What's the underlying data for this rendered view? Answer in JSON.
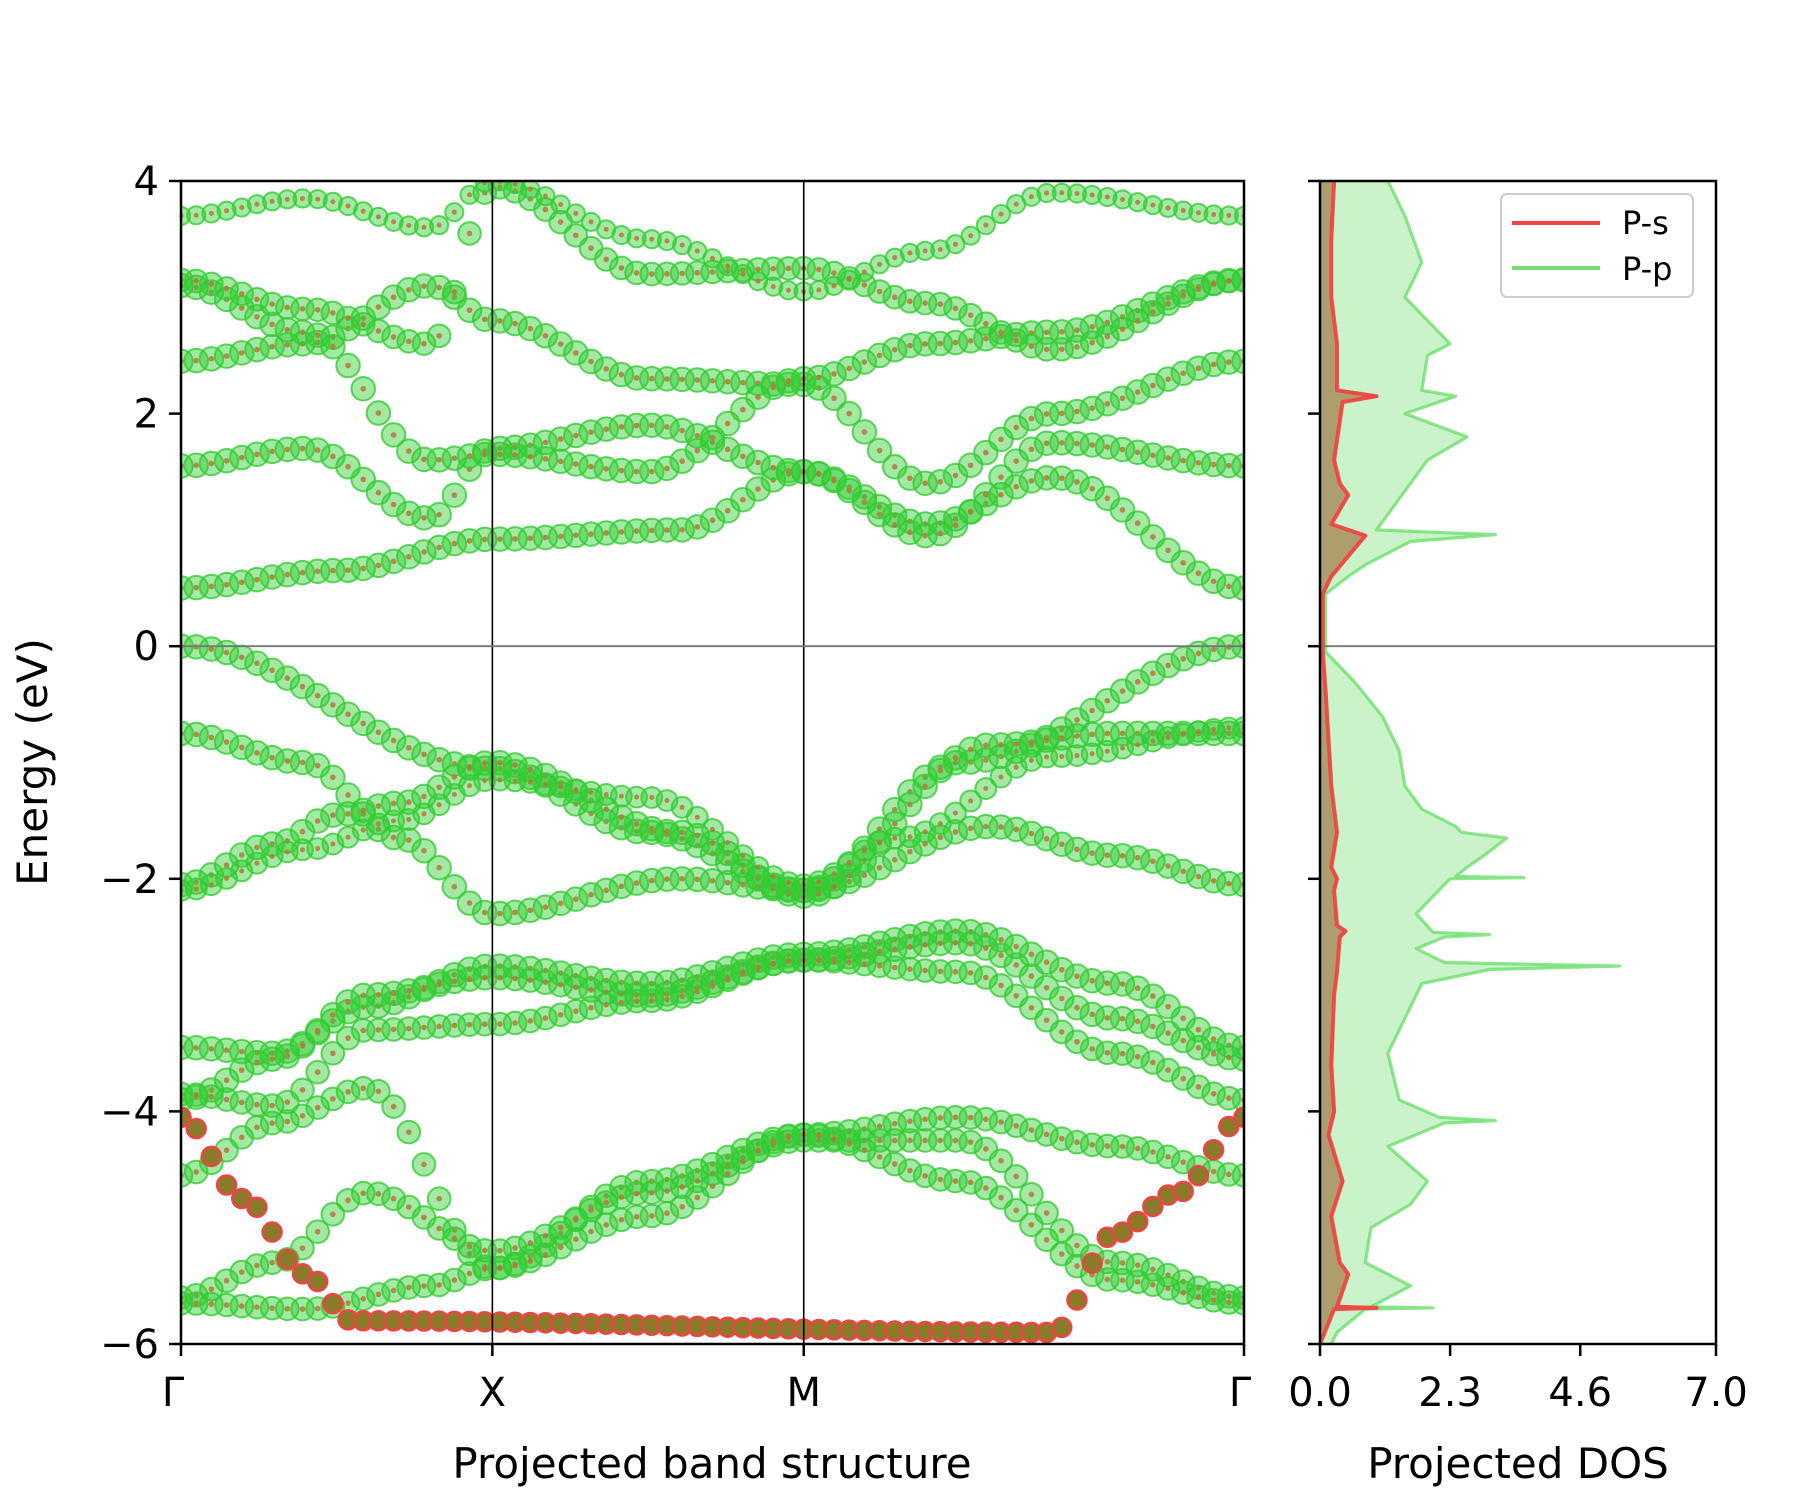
{
  "chart_data": [
    {
      "type": "scatter",
      "subtype": "projected-band-structure",
      "xlabel": "Projected band structure",
      "ylabel": "Energy (eV)",
      "ylim": [
        -6,
        4
      ],
      "yticks": [
        "4",
        "2",
        "0",
        "−2",
        "−4",
        "−6"
      ],
      "ytick_values": [
        4,
        2,
        0,
        -2,
        -4,
        -6
      ],
      "kpath": {
        "labels": [
          "Γ",
          "X",
          "M",
          "Γ"
        ],
        "positions": [
          0,
          1,
          2,
          3.414
        ]
      },
      "fermi_level": 0,
      "colors": {
        "p": "#33cc33",
        "s": "#ee4444",
        "s_inner": "#b07a3a"
      },
      "bands": [
        {
          "name": "vb-top",
          "kx": [
            0,
            1,
            1.5,
            2,
            2.5,
            3.414
          ],
          "energy": [
            0.0,
            -1.05,
            -1.6,
            -2.1,
            -1.0,
            0.0
          ],
          "p_weight": 0.75,
          "s_weight": 0.08
        },
        {
          "name": "vb-2",
          "kx": [
            0,
            0.4,
            0.7,
            1,
            1.6,
            2,
            2.6,
            3.0,
            3.414
          ],
          "energy": [
            -0.75,
            -1.0,
            -1.65,
            -2.3,
            -2.0,
            -2.1,
            -1.55,
            -1.8,
            -2.05
          ],
          "p_weight": 0.75,
          "s_weight": 0.08
        },
        {
          "name": "vb-3",
          "kx": [
            0,
            0.3,
            0.5,
            0.7,
            1.0,
            1.6,
            2,
            2.6,
            3.0,
            3.414
          ],
          "energy": [
            -2.05,
            -1.7,
            -1.45,
            -1.35,
            -1.0,
            -1.6,
            -2.15,
            -0.85,
            -0.75,
            -0.75
          ],
          "p_weight": 0.75,
          "s_weight": 0.08
        },
        {
          "name": "vb-4",
          "kx": [
            0,
            0.4,
            0.7,
            1,
            1.5,
            2,
            2.3,
            2.8,
            3.414
          ],
          "energy": [
            -2.1,
            -1.75,
            -1.5,
            -1.15,
            -1.3,
            -2.05,
            -1.65,
            -0.95,
            -0.7
          ],
          "p_weight": 0.6,
          "s_weight": 0.05
        },
        {
          "name": "vb-5",
          "kx": [
            0,
            0.3,
            0.6,
            1,
            1.5,
            2,
            2.5,
            3.0,
            3.414
          ],
          "energy": [
            -3.45,
            -3.5,
            -3.1,
            -2.75,
            -2.9,
            -2.65,
            -2.45,
            -2.9,
            -3.45
          ],
          "p_weight": 0.75,
          "s_weight": 0.08
        },
        {
          "name": "vb-6",
          "kx": [
            0,
            0.3,
            0.6,
            1,
            1.5,
            2,
            2.5,
            3.0,
            3.414
          ],
          "energy": [
            -3.9,
            -3.55,
            -3.0,
            -2.85,
            -3.0,
            -2.7,
            -2.55,
            -3.2,
            -3.55
          ],
          "p_weight": 0.75,
          "s_weight": 0.08
        },
        {
          "name": "vb-7",
          "kx": [
            0,
            0.3,
            0.6,
            1,
            1.5,
            2,
            2.5,
            3.0,
            3.414
          ],
          "energy": [
            -3.85,
            -3.95,
            -3.3,
            -3.25,
            -3.05,
            -2.7,
            -2.8,
            -3.5,
            -3.9
          ],
          "p_weight": 0.7,
          "s_weight": 0.08
        },
        {
          "name": "vb-8",
          "kx": [
            0,
            0.3,
            0.6,
            1,
            1.5,
            2,
            2.5,
            3.0,
            3.414
          ],
          "energy": [
            -4.55,
            -4.1,
            -3.8,
            -5.35,
            -4.6,
            -4.2,
            -4.05,
            -4.3,
            -4.55
          ],
          "p_weight": 0.7,
          "s_weight": 0.08
        },
        {
          "name": "vb-9",
          "kx": [
            0,
            0.3,
            0.6,
            1,
            1.5,
            2,
            2.5,
            3.0,
            3.414
          ],
          "energy": [
            -5.6,
            -5.3,
            -4.7,
            -5.2,
            -4.7,
            -4.25,
            -4.25,
            -5.3,
            -5.6
          ],
          "p_weight": 0.7,
          "s_weight": 0.08
        },
        {
          "name": "vb-10",
          "kx": [
            0,
            0.4,
            0.8,
            1,
            1.5,
            2,
            2.5,
            3.0,
            3.414
          ],
          "energy": [
            -5.65,
            -5.7,
            -5.5,
            -5.35,
            -4.9,
            -4.2,
            -4.6,
            -5.45,
            -5.65
          ],
          "p_weight": 0.7,
          "s_weight": 0.08
        },
        {
          "name": "vb-s",
          "kx": [
            0,
            0.2,
            0.4,
            0.55,
            2.8,
            3.0,
            3.2,
            3.414
          ],
          "energy": [
            -4.05,
            -4.75,
            -5.4,
            -5.8,
            -5.9,
            -5.05,
            -4.7,
            -4.05
          ],
          "p_weight": 0.35,
          "s_weight": 0.75
        },
        {
          "name": "cb-1",
          "kx": [
            0,
            0.5,
            1,
            1.6,
            2,
            2.4,
            2.8,
            3.414
          ],
          "energy": [
            0.5,
            0.65,
            0.92,
            1.0,
            1.5,
            1.05,
            1.45,
            0.5
          ],
          "p_weight": 0.75,
          "s_weight": 0.08
        },
        {
          "name": "cb-2",
          "kx": [
            0,
            0.4,
            0.8,
            1,
            1.5,
            2,
            2.4,
            2.8,
            3.414
          ],
          "energy": [
            1.55,
            1.7,
            1.1,
            1.7,
            1.9,
            1.5,
            0.95,
            1.75,
            1.55
          ],
          "p_weight": 0.75,
          "s_weight": 0.08
        },
        {
          "name": "cb-3",
          "kx": [
            0,
            0.4,
            0.8,
            1,
            1.5,
            2,
            2.4,
            2.8,
            3.414
          ],
          "energy": [
            2.45,
            2.6,
            3.1,
            2.8,
            2.3,
            2.25,
            1.4,
            2.0,
            2.45
          ],
          "p_weight": 0.75,
          "s_weight": 0.08
        },
        {
          "name": "cb-4",
          "kx": [
            0,
            0.4,
            0.8,
            1,
            1.5,
            2,
            2.4,
            2.8,
            3.414
          ],
          "energy": [
            3.1,
            2.7,
            1.6,
            1.65,
            1.5,
            2.3,
            2.6,
            2.7,
            3.15
          ],
          "p_weight": 0.75,
          "s_weight": 0.08
        },
        {
          "name": "cb-5",
          "kx": [
            0,
            0.4,
            0.8,
            1,
            1.5,
            2,
            2.4,
            2.8,
            3.414
          ],
          "energy": [
            3.15,
            2.9,
            2.6,
            3.95,
            3.2,
            3.25,
            2.95,
            2.55,
            3.15
          ],
          "p_weight": 0.7,
          "s_weight": 0.08
        },
        {
          "name": "cb-6",
          "kx": [
            0,
            0.4,
            0.8,
            1,
            1.5,
            2,
            2.4,
            2.8,
            3.414
          ],
          "energy": [
            3.7,
            3.85,
            3.6,
            4.0,
            3.5,
            3.05,
            3.4,
            3.9,
            3.7
          ],
          "p_weight": 0.45,
          "s_weight": 0.05
        }
      ]
    },
    {
      "type": "area",
      "subtype": "projected-dos",
      "xlabel": "Projected DOS",
      "xlim": [
        0,
        7
      ],
      "xticks": [
        "0.0",
        "2.3",
        "4.6",
        "7.0"
      ],
      "xtick_values": [
        0,
        2.3,
        4.6,
        7.0
      ],
      "ylim": [
        -6,
        4
      ],
      "legend_position": "top-right",
      "series": [
        {
          "name": "P-s",
          "color": "#ee4444",
          "energy": [
            -6.0,
            -5.7,
            -5.69,
            -5.68,
            -5.4,
            -5.3,
            -4.9,
            -4.6,
            -4.2,
            -4.0,
            -3.6,
            -3.0,
            -2.8,
            -2.5,
            -2.45,
            -2.4,
            -2.1,
            -2.0,
            -1.9,
            -1.6,
            -1.2,
            -0.8,
            -0.4,
            -0.05,
            0.45,
            0.6,
            0.95,
            1.0,
            1.05,
            1.3,
            1.4,
            1.6,
            2.1,
            2.15,
            2.2,
            2.6,
            3.0,
            3.5,
            4.0
          ],
          "dos": [
            0.0,
            0.25,
            1.0,
            0.3,
            0.5,
            0.35,
            0.2,
            0.4,
            0.15,
            0.25,
            0.2,
            0.25,
            0.3,
            0.35,
            0.45,
            0.3,
            0.25,
            0.3,
            0.2,
            0.3,
            0.2,
            0.15,
            0.1,
            0.05,
            0.05,
            0.2,
            0.8,
            0.5,
            0.2,
            0.5,
            0.35,
            0.25,
            0.4,
            1.0,
            0.3,
            0.3,
            0.2,
            0.2,
            0.25
          ]
        },
        {
          "name": "P-p",
          "color": "#66dd66",
          "energy": [
            -6.0,
            -5.9,
            -5.7,
            -5.69,
            -5.68,
            -5.5,
            -5.3,
            -5.0,
            -4.8,
            -4.6,
            -4.3,
            -4.1,
            -4.08,
            -4.05,
            -3.9,
            -3.7,
            -3.5,
            -3.2,
            -2.9,
            -2.78,
            -2.75,
            -2.72,
            -2.6,
            -2.5,
            -2.48,
            -2.46,
            -2.3,
            -2.0,
            -1.99,
            -1.98,
            -1.9,
            -1.8,
            -1.65,
            -1.6,
            -1.55,
            -1.4,
            -1.2,
            -0.9,
            -0.6,
            -0.3,
            -0.05,
            0.45,
            0.6,
            0.7,
            0.9,
            0.96,
            0.98,
            1.0,
            1.2,
            1.4,
            1.6,
            1.8,
            2.0,
            2.15,
            2.2,
            2.5,
            2.6,
            3.0,
            3.3,
            3.7,
            4.0
          ],
          "dos": [
            0.2,
            0.3,
            0.8,
            2.0,
            0.9,
            1.6,
            0.8,
            0.9,
            1.6,
            1.9,
            1.2,
            2.2,
            3.1,
            2.1,
            1.4,
            1.3,
            1.2,
            1.5,
            1.8,
            3.0,
            5.3,
            2.2,
            1.7,
            2.2,
            3.0,
            2.0,
            1.7,
            2.3,
            3.6,
            2.4,
            2.6,
            2.9,
            3.3,
            2.5,
            2.4,
            1.8,
            1.5,
            1.4,
            1.1,
            0.6,
            0.1,
            0.1,
            0.5,
            0.8,
            1.6,
            3.1,
            2.0,
            1.0,
            1.3,
            1.6,
            1.9,
            2.6,
            1.5,
            2.4,
            1.8,
            1.9,
            2.3,
            1.5,
            1.8,
            1.5,
            1.2
          ]
        }
      ]
    }
  ]
}
